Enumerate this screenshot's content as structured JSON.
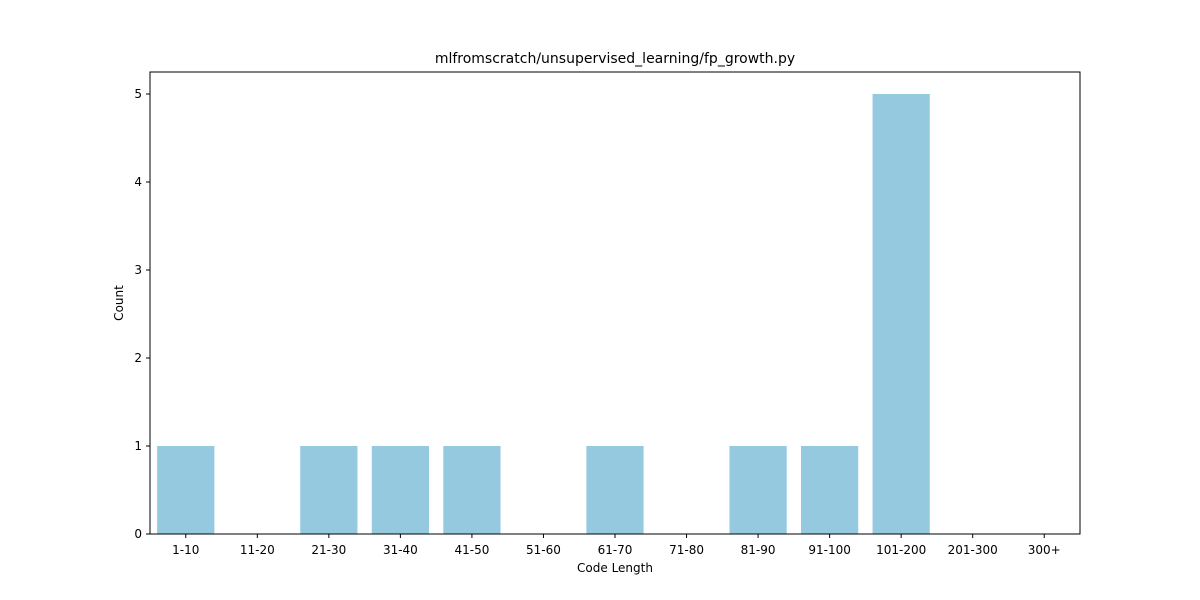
{
  "chart_data": {
    "type": "bar",
    "title": "mlfromscratch/unsupervised_learning/fp_growth.py",
    "xlabel": "Code Length",
    "ylabel": "Count",
    "categories": [
      "1-10",
      "11-20",
      "21-30",
      "31-40",
      "41-50",
      "51-60",
      "61-70",
      "71-80",
      "81-90",
      "91-100",
      "101-200",
      "201-300",
      "300+"
    ],
    "values": [
      1,
      0,
      1,
      1,
      1,
      0,
      1,
      0,
      1,
      1,
      5,
      0,
      0
    ],
    "ylim": [
      0,
      5.25
    ],
    "yticks": [
      0,
      1,
      2,
      3,
      4,
      5
    ],
    "bar_color": "#95c9df",
    "grid": false,
    "legend": "none"
  }
}
